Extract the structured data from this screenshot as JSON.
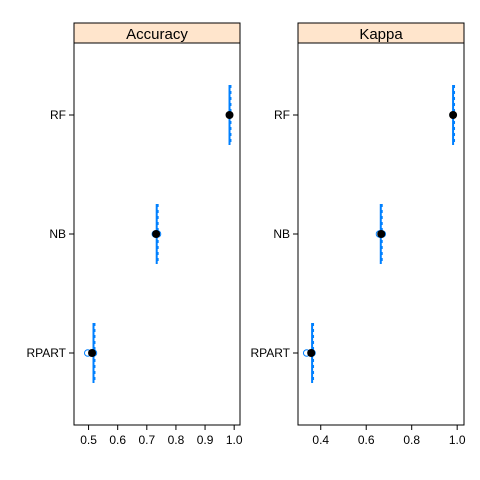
{
  "chart_data": [
    {
      "type": "dotplot",
      "title": "Accuracy",
      "categories": [
        "RF",
        "NB",
        "RPART"
      ],
      "xlim": [
        0.45,
        1.02
      ],
      "xticks": [
        0.5,
        0.6,
        0.7,
        0.8,
        0.9,
        1.0
      ],
      "xtick_labels": [
        "0.5",
        "0.6",
        "0.7",
        "0.8",
        "0.9",
        "1.0"
      ],
      "points": [
        {
          "category": "RF",
          "median": 0.984,
          "mean": 0.984,
          "band": [
            0.984,
            0.984
          ],
          "whisker": [
            0.984,
            0.984
          ]
        },
        {
          "category": "NB",
          "median": 0.734,
          "mean": 0.732,
          "band": [
            0.729,
            0.737
          ],
          "whisker": [
            0.734,
            0.734
          ]
        },
        {
          "category": "RPART",
          "median": 0.517,
          "mean": 0.512,
          "band": [
            0.497,
            0.517
          ],
          "whisker": [
            0.517,
            0.517
          ]
        }
      ]
    },
    {
      "type": "dotplot",
      "title": "Kappa",
      "categories": [
        "RF",
        "NB",
        "RPART"
      ],
      "xlim": [
        0.3,
        1.03
      ],
      "xticks": [
        0.4,
        0.6,
        0.8,
        1.0
      ],
      "xtick_labels": [
        "0.4",
        "0.6",
        "0.8",
        "1.0"
      ],
      "points": [
        {
          "category": "RF",
          "median": 0.982,
          "mean": 0.982,
          "band": [
            0.982,
            0.982
          ],
          "whisker": [
            0.982,
            0.982
          ]
        },
        {
          "category": "NB",
          "median": 0.664,
          "mean": 0.666,
          "band": [
            0.658,
            0.671
          ],
          "whisker": [
            0.664,
            0.664
          ]
        },
        {
          "category": "RPART",
          "median": 0.362,
          "mean": 0.358,
          "band": [
            0.338,
            0.362
          ],
          "whisker": [
            0.362,
            0.362
          ]
        }
      ]
    }
  ],
  "colors": {
    "strip_fill": "#ffe5cc",
    "frame": "#000000",
    "interval": "#0080ff",
    "point": "#000000"
  }
}
